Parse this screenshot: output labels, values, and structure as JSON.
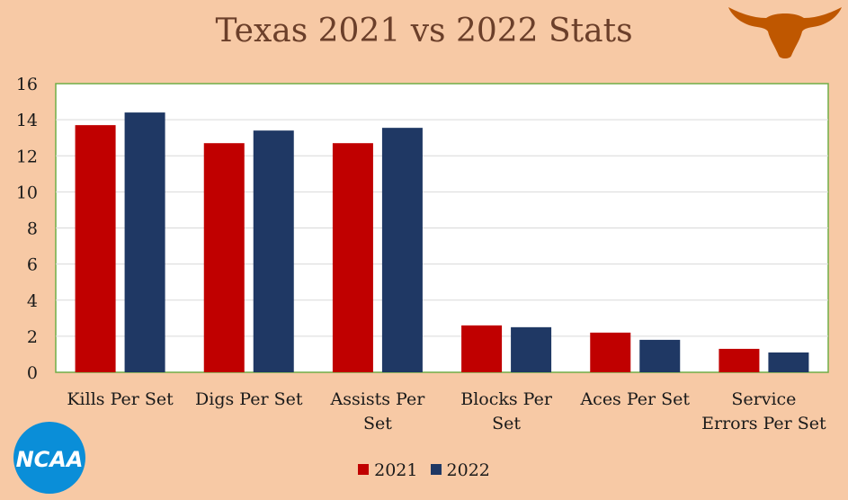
{
  "chart_data": {
    "type": "bar",
    "title": "Texas 2021 vs 2022 Stats",
    "categories": [
      [
        "Kills Per Set"
      ],
      [
        "Digs Per Set"
      ],
      [
        "Assists Per",
        "Set"
      ],
      [
        "Blocks Per",
        "Set"
      ],
      [
        "Aces Per Set"
      ],
      [
        "Service",
        "Errors Per Set"
      ]
    ],
    "series": [
      {
        "name": "2021",
        "color": "#c00000",
        "values": [
          13.7,
          12.7,
          12.7,
          2.6,
          2.2,
          1.3
        ]
      },
      {
        "name": "2022",
        "color": "#1f3864",
        "values": [
          14.4,
          13.4,
          13.55,
          2.5,
          1.8,
          1.1
        ]
      }
    ],
    "ylim": [
      0,
      16
    ],
    "yticks": [
      "0",
      "2",
      "4",
      "6",
      "8",
      "10",
      "12",
      "14",
      "16"
    ],
    "grid": true,
    "legend_position": "bottom",
    "plot_background": "#ffffff",
    "plot_border_color": "#70ad47",
    "grid_color": "#d9d9d9"
  },
  "logos": {
    "ncaa_text": "NCAA",
    "ncaa_icon": "ncaa-logo",
    "longhorn_icon": "longhorn-logo",
    "longhorn_color": "#bf5700",
    "ncaa_color": "#0a8ed8"
  }
}
